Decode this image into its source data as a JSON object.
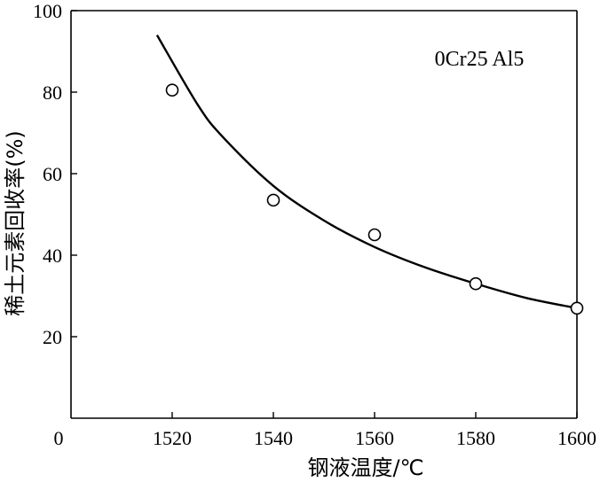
{
  "chart_data": {
    "type": "scatter",
    "xlabel": "钢液温度/℃",
    "ylabel": "稀土元素回收率(%)",
    "annotation": "0Cr25 Al5",
    "origin_label": "0",
    "xlim": [
      1500,
      1600
    ],
    "ylim": [
      0,
      100
    ],
    "x_ticks": [
      1520,
      1540,
      1560,
      1580,
      1600
    ],
    "y_ticks": [
      20,
      40,
      60,
      80,
      100
    ],
    "grid": false,
    "series": [
      {
        "kind": "points",
        "marker": "open-circle",
        "x": [
          1520,
          1540,
          1560,
          1580,
          1600
        ],
        "y": [
          80.5,
          53.5,
          45,
          33,
          27
        ]
      },
      {
        "kind": "fit-curve",
        "x": [
          1517,
          1525,
          1530,
          1540,
          1550,
          1560,
          1570,
          1580,
          1590,
          1600
        ],
        "y": [
          94,
          77,
          69,
          57,
          48.5,
          42,
          37,
          33,
          29.5,
          27
        ]
      }
    ]
  }
}
